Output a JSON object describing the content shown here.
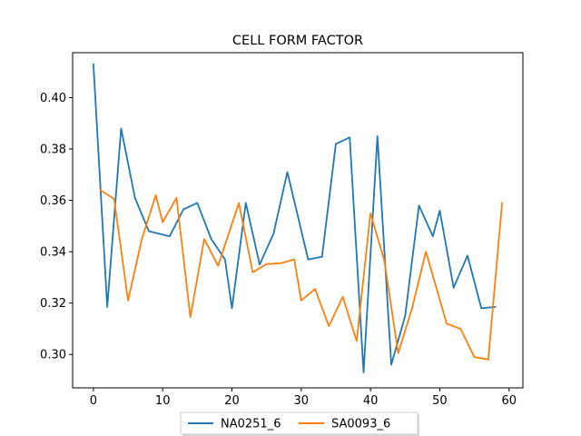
{
  "chart_data": {
    "type": "line",
    "title": "CELL FORM FACTOR",
    "xlabel": "",
    "ylabel": "",
    "xlim": [
      -3,
      62
    ],
    "ylim": [
      0.287,
      0.4175
    ],
    "xticks": [
      0,
      10,
      20,
      30,
      40,
      50,
      60
    ],
    "yticks": [
      0.3,
      0.32,
      0.34,
      0.36,
      0.38,
      0.4
    ],
    "ytick_labels": [
      "0.30",
      "0.32",
      "0.34",
      "0.36",
      "0.38",
      "0.40"
    ],
    "grid": false,
    "legend_position": "bottom-center",
    "series": [
      {
        "name": "NA0251_6",
        "color": "#1f77b4",
        "x": [
          0,
          2,
          4,
          6,
          8,
          11,
          13,
          15,
          17,
          19,
          20,
          22,
          24,
          26,
          28,
          31,
          33,
          35,
          37,
          39,
          41,
          43,
          45,
          47,
          49,
          50,
          52,
          54,
          56,
          58
        ],
        "y": [
          0.413,
          0.3185,
          0.388,
          0.361,
          0.348,
          0.346,
          0.3565,
          0.359,
          0.345,
          0.337,
          0.318,
          0.359,
          0.335,
          0.347,
          0.371,
          0.337,
          0.338,
          0.382,
          0.3845,
          0.293,
          0.385,
          0.296,
          0.315,
          0.358,
          0.346,
          0.356,
          0.326,
          0.3385,
          0.318,
          0.3185
        ]
      },
      {
        "name": "SA0093_6",
        "color": "#ff7f0e",
        "x": [
          1,
          3,
          5,
          7,
          9,
          10,
          12,
          14,
          16,
          18,
          21,
          23,
          25,
          27,
          29,
          30,
          32,
          34,
          36,
          38,
          40,
          42,
          44,
          46,
          48,
          51,
          53,
          55,
          57,
          59
        ],
        "y": [
          0.364,
          0.3605,
          0.321,
          0.345,
          0.362,
          0.3515,
          0.361,
          0.3145,
          0.345,
          0.3345,
          0.359,
          0.332,
          0.3352,
          0.3355,
          0.337,
          0.321,
          0.3255,
          0.311,
          0.3225,
          0.3052,
          0.355,
          0.3365,
          0.3005,
          0.318,
          0.34,
          0.312,
          0.31,
          0.299,
          0.298,
          0.359
        ]
      }
    ]
  }
}
